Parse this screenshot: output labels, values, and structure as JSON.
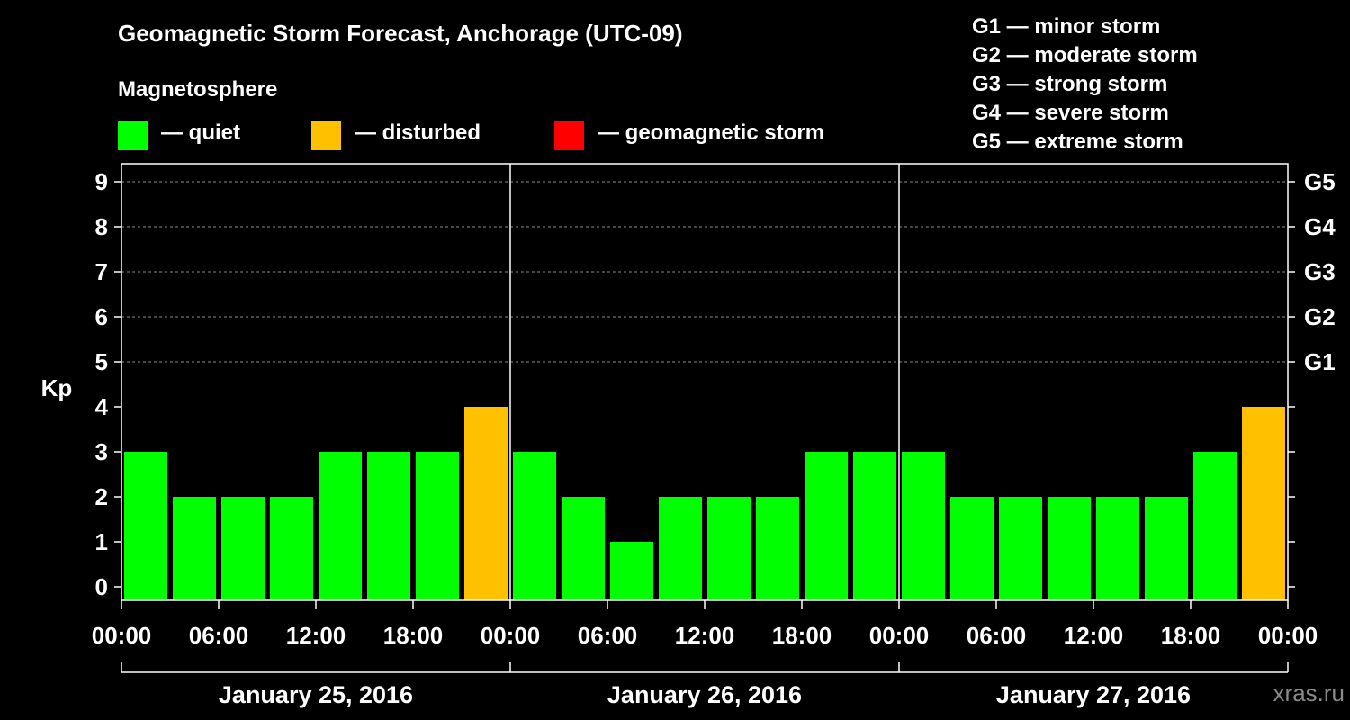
{
  "chart_data": {
    "type": "bar",
    "title": "Geomagnetic Storm Forecast, Anchorage (UTC-09)",
    "subtitle": "Magnetosphere",
    "legend": [
      {
        "label": "— quiet",
        "color": "#00ff00"
      },
      {
        "label": "— disturbed",
        "color": "#ffc000"
      },
      {
        "label": "— geomagnetic storm",
        "color": "#ff0000"
      }
    ],
    "storm_scale": [
      "G1 — minor storm",
      "G2 — moderate storm",
      "G3 — strong storm",
      "G4 — severe storm",
      "G5 — extreme storm"
    ],
    "ylabel": "Kp",
    "ylim": [
      0,
      9
    ],
    "y_ticks": [
      "0",
      "1",
      "2",
      "3",
      "4",
      "5",
      "6",
      "7",
      "8",
      "9"
    ],
    "right_axis_labels": [
      {
        "kp": 5,
        "label": "G1"
      },
      {
        "kp": 6,
        "label": "G2"
      },
      {
        "kp": 7,
        "label": "G3"
      },
      {
        "kp": 8,
        "label": "G4"
      },
      {
        "kp": 9,
        "label": "G5"
      }
    ],
    "x_tick_labels": [
      "00:00",
      "06:00",
      "12:00",
      "18:00",
      "00:00",
      "06:00",
      "12:00",
      "18:00",
      "00:00",
      "06:00",
      "12:00",
      "18:00",
      "00:00"
    ],
    "days": [
      "January 25, 2016",
      "January 26, 2016",
      "January 27, 2016"
    ],
    "values": [
      3,
      2,
      2,
      2,
      3,
      3,
      3,
      4,
      3,
      2,
      1,
      2,
      2,
      2,
      3,
      3,
      3,
      2,
      2,
      2,
      2,
      2,
      3,
      4
    ],
    "colors": {
      "quiet": "#00ff00",
      "disturbed": "#ffc000",
      "storm": "#ff0000"
    },
    "grid": true
  },
  "watermark": "xras.ru"
}
